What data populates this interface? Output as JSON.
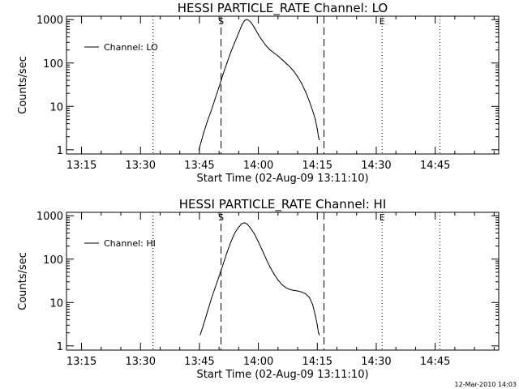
{
  "footer": {
    "timestamp": "12-Mar-2010 14:03"
  },
  "chart_data": [
    {
      "type": "line",
      "title": "HESSI PARTICLE_RATE Channel: LO",
      "xlabel": "Start Time (02-Aug-09 13:11:10)",
      "ylabel": "Counts/sec",
      "x_tick_labels": [
        "13:15",
        "13:30",
        "13:45",
        "14:00",
        "14:15",
        "14:30",
        "14:45"
      ],
      "x_tick_minutes": [
        15,
        30,
        45,
        60,
        75,
        90,
        105
      ],
      "xlim_minutes": [
        11.17,
        121.17
      ],
      "y_tick_labels": [
        "1",
        "10",
        "100",
        "1000"
      ],
      "y_tick_values": [
        1,
        10,
        100,
        1000
      ],
      "ylim": [
        0.8,
        1200
      ],
      "yscale": "log",
      "grid": false,
      "legend": {
        "position": "top-left",
        "entries": [
          "Channel: LO"
        ]
      },
      "dashed_lines_minutes": [
        50.5,
        76.7
      ],
      "dotted_lines_minutes": [
        33.2,
        91.5,
        106.2
      ],
      "marker_labels": [
        {
          "text": "S",
          "x_minute": 50.5
        },
        {
          "text": "E",
          "x_minute": 91.5
        }
      ],
      "series": [
        {
          "name": "Channel: LO",
          "x_minutes": [
            44.9,
            45.4,
            46.1,
            47.0,
            48.0,
            49.0,
            50.0,
            51.0,
            52.0,
            53.0,
            54.0,
            55.0,
            55.8,
            56.5,
            57.0,
            57.5,
            58.2,
            59.0,
            60.0,
            61.0,
            62.0,
            63.0,
            64.0,
            65.0,
            66.0,
            67.0,
            68.0,
            69.0,
            70.0,
            71.0,
            72.0,
            73.0,
            73.8,
            74.5,
            75.0,
            75.3,
            75.5
          ],
          "y": [
            1,
            1.5,
            2.5,
            4.5,
            8,
            15,
            28,
            55,
            100,
            180,
            300,
            500,
            750,
            950,
            1000,
            970,
            850,
            650,
            450,
            330,
            250,
            200,
            170,
            145,
            120,
            100,
            82,
            65,
            48,
            34,
            22,
            13,
            8,
            5,
            3,
            2,
            1.7
          ]
        }
      ]
    },
    {
      "type": "line",
      "title": "HESSI PARTICLE_RATE Channel: HI",
      "xlabel": "Start Time (02-Aug-09 13:11:10)",
      "ylabel": "Counts/sec",
      "x_tick_labels": [
        "13:15",
        "13:30",
        "13:45",
        "14:00",
        "14:15",
        "14:30",
        "14:45"
      ],
      "x_tick_minutes": [
        15,
        30,
        45,
        60,
        75,
        90,
        105
      ],
      "xlim_minutes": [
        11.17,
        121.17
      ],
      "y_tick_labels": [
        "1",
        "10",
        "100",
        "1000"
      ],
      "y_tick_values": [
        1,
        10,
        100,
        1000
      ],
      "ylim": [
        0.8,
        1200
      ],
      "yscale": "log",
      "grid": false,
      "legend": {
        "position": "top-left",
        "entries": [
          "Channel: HI"
        ]
      },
      "dashed_lines_minutes": [
        50.5,
        76.7
      ],
      "dotted_lines_minutes": [
        33.2,
        91.5,
        106.2
      ],
      "marker_labels": [
        {
          "text": "S",
          "x_minute": 50.5
        },
        {
          "text": "E",
          "x_minute": 91.5
        }
      ],
      "series": [
        {
          "name": "Channel: HI",
          "x_minutes": [
            45.2,
            46.0,
            47.0,
            48.0,
            49.0,
            50.0,
            51.0,
            52.0,
            53.0,
            54.0,
            55.0,
            55.8,
            56.5,
            57.2,
            58.0,
            59.0,
            60.0,
            61.0,
            62.0,
            63.0,
            64.0,
            65.0,
            66.0,
            67.0,
            68.0,
            69.0,
            70.0,
            71.0,
            72.0,
            73.0,
            73.8,
            74.5,
            75.0,
            75.3,
            75.5
          ],
          "y": [
            1.8,
            3,
            6,
            12,
            22,
            40,
            75,
            140,
            250,
            400,
            550,
            660,
            690,
            640,
            520,
            380,
            250,
            160,
            100,
            65,
            45,
            33,
            26,
            22,
            20,
            19,
            18.5,
            17.5,
            16,
            13,
            9,
            5,
            3,
            2,
            1.8
          ]
        }
      ]
    }
  ]
}
